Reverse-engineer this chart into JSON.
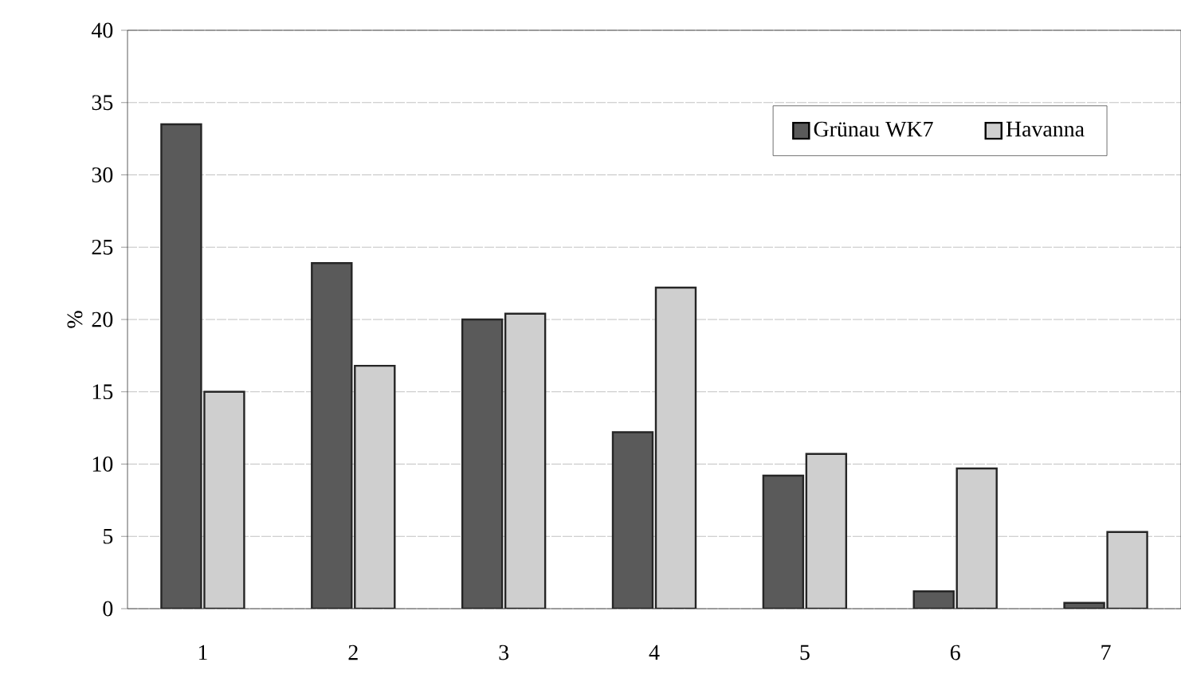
{
  "chart_data": {
    "type": "bar",
    "ylabel": "%",
    "categories": [
      "1",
      "2",
      "3",
      "4",
      "5",
      "6",
      "7"
    ],
    "series": [
      {
        "name": "Grünau WK7",
        "color": "#5a5a5a",
        "values": [
          33.5,
          23.9,
          20.0,
          12.2,
          9.2,
          1.2,
          0.4
        ]
      },
      {
        "name": "Havanna",
        "color": "#cfcfcf",
        "values": [
          15.0,
          16.8,
          20.4,
          22.2,
          10.7,
          9.7,
          5.3
        ]
      }
    ],
    "ylim": [
      0,
      40
    ],
    "yticks": [
      0,
      5,
      10,
      15,
      20,
      25,
      30,
      35,
      40
    ],
    "grid": "y",
    "legend": "top right"
  }
}
